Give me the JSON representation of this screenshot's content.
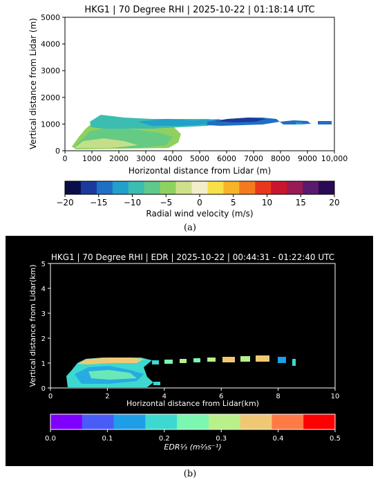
{
  "colors": {
    "panel_b_background": "#000000",
    "velocity_colormap": [
      "#0b0d4a",
      "#1a3a9e",
      "#1f6fc4",
      "#21a0c9",
      "#3cbdb1",
      "#5ec98a",
      "#8fd15e",
      "#cfe08a",
      "#f2efc8",
      "#f7e04a",
      "#f7b428",
      "#f57a1f",
      "#e8381c",
      "#c9162e",
      "#9a1a55",
      "#5a1a6e",
      "#2a0a55"
    ],
    "edr_colormap": [
      "#7f00ff",
      "#4a5cf7",
      "#1f9ee8",
      "#3dd8d0",
      "#7cf7b0",
      "#b8f08a",
      "#f0c874",
      "#ff7a45",
      "#ff0000"
    ]
  },
  "panel_a": {
    "letter": "(a)",
    "chart_data": {
      "type": "heatmap",
      "title": "HKG1 | 70 Degree RHI | 2025-10-22 | 01:18:14 UTC",
      "xlabel": "Horizontal distance from Lidar (m)",
      "ylabel": "Vertical distance from Lidar (m)",
      "xlim": [
        0,
        10000
      ],
      "ylim": [
        0,
        5000
      ],
      "xticks": [
        "0",
        "1000",
        "2000",
        "3000",
        "4000",
        "5000",
        "6000",
        "7000",
        "8000",
        "9000",
        "10,000"
      ],
      "yticks": [
        "0",
        "1000",
        "2000",
        "3000",
        "4000",
        "5000"
      ],
      "colorbar": {
        "label": "Radial wind velocity (m/s)",
        "range": [
          -20,
          20
        ],
        "ticks": [
          "−20",
          "−15",
          "−10",
          "−5",
          "0",
          "5",
          "10",
          "15",
          "20"
        ]
      },
      "features": [
        {
          "x": [
            300,
            4200
          ],
          "y": [
            0,
            1250
          ],
          "velocity": -6
        },
        {
          "x": [
            1200,
            6000
          ],
          "y": [
            950,
            1250
          ],
          "velocity": -13
        },
        {
          "x": [
            6000,
            8000
          ],
          "y": [
            950,
            1150
          ],
          "velocity": -14
        },
        {
          "x": [
            8000,
            8500
          ],
          "y": [
            950,
            1050
          ],
          "velocity": -13
        },
        {
          "x": [
            9400,
            10000
          ],
          "y": [
            950,
            1100
          ],
          "velocity": -14
        }
      ]
    }
  },
  "panel_b": {
    "letter": "(b)",
    "chart_data": {
      "type": "heatmap",
      "title": "HKG1 | 70 Degree RHI | EDR | 2025-10-22 | 00:44:31 - 01:22:40 UTC",
      "xlabel": "Horizontal distance from Lidar(km)",
      "ylabel": "Vertical distance from Lidar(km)",
      "xlim": [
        0,
        10
      ],
      "ylim": [
        0,
        5
      ],
      "xticks": [
        "0",
        "2",
        "4",
        "6",
        "8",
        "10"
      ],
      "yticks": [
        "0",
        "1",
        "2",
        "3",
        "4",
        "5"
      ],
      "colorbar": {
        "label": "EDR⅓ (m⅔s⁻¹)",
        "range": [
          0,
          0.5
        ],
        "ticks": [
          "0.0",
          "0.1",
          "0.2",
          "0.3",
          "0.4",
          "0.5"
        ]
      },
      "features": [
        {
          "x": [
            0.6,
            3.8
          ],
          "y": [
            0,
            1.1
          ],
          "edr": 0.17
        },
        {
          "x": [
            3.8,
            4.8
          ],
          "y": [
            0.95,
            1.1
          ],
          "edr": 0.2
        },
        {
          "x": [
            5.2,
            7.8
          ],
          "y": [
            0.95,
            1.25
          ],
          "edr": 0.26
        },
        {
          "x": [
            8.0,
            8.6
          ],
          "y": [
            0.85,
            1.1
          ],
          "edr": 0.16
        }
      ]
    }
  }
}
